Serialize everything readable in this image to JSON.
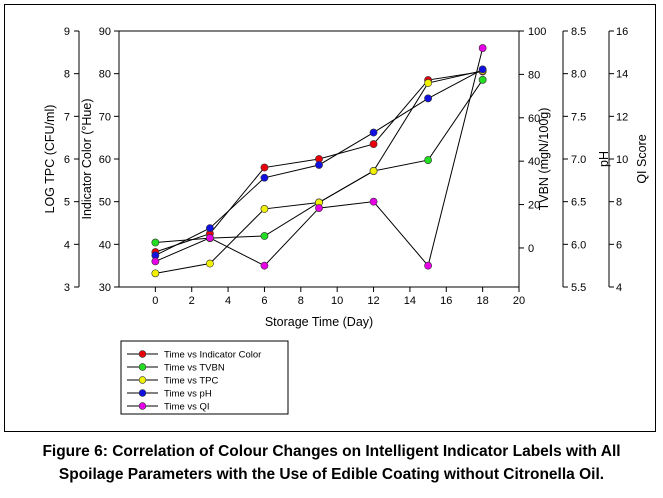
{
  "caption": {
    "line1": "Figure 6: Correlation of Colour Changes on Intelligent Indicator Labels with All",
    "line2": "Spoilage Parameters with the Use of Edible Coating without Citronella Oil."
  },
  "chart_data": {
    "type": "line",
    "title": "",
    "xlabel": "Storage Time (Day)",
    "x_ticks": [
      0,
      2,
      4,
      6,
      8,
      10,
      12,
      14,
      16,
      18,
      20
    ],
    "xlim": [
      -2,
      20
    ],
    "x": [
      0,
      3,
      6,
      9,
      12,
      15,
      18
    ],
    "axes": {
      "tpc": {
        "label": "LOG TPC (CFU/ml)",
        "ticks": [
          3,
          4,
          5,
          6,
          7,
          8,
          9
        ],
        "range": [
          3,
          9
        ]
      },
      "color": {
        "label": "Indicator Color (°Hue)",
        "ticks": [
          30,
          40,
          50,
          60,
          70,
          80,
          90
        ],
        "range": [
          30,
          90
        ]
      },
      "tvbn": {
        "label": "TVBN (mgN/100g)",
        "ticks": [
          0,
          20,
          40,
          60,
          80,
          100
        ],
        "range": [
          -18,
          100
        ]
      },
      "ph": {
        "label": "pH",
        "ticks": [
          5.5,
          6.0,
          6.5,
          7.0,
          7.5,
          8.0,
          8.5
        ],
        "tick_labels": [
          "5.5",
          "6.0",
          "6.5",
          "7.0",
          "7.5",
          "8.0",
          "8.5"
        ],
        "range": [
          5.5,
          8.5
        ]
      },
      "qi": {
        "label": "QI Score",
        "ticks": [
          4,
          6,
          8,
          10,
          12,
          14,
          16
        ],
        "range": [
          4,
          16
        ]
      }
    },
    "series": [
      {
        "name": "Time vs Indicator Color",
        "axis": "color",
        "color": "#e8000b",
        "values": [
          38.2,
          42.5,
          58,
          60,
          63.5,
          78.5,
          80.5
        ]
      },
      {
        "name": "Time vs TVBN",
        "axis": "tvbn",
        "color": "#22dd22",
        "values": [
          2.5,
          4.5,
          5.5,
          21,
          35.5,
          40.5,
          77.5
        ]
      },
      {
        "name": "Time vs TPC",
        "axis": "tpc",
        "color": "#f0f000",
        "values": [
          3.32,
          3.55,
          4.83,
          4.98,
          5.72,
          7.78,
          8.07
        ]
      },
      {
        "name": "Time vs pH",
        "axis": "ph",
        "color": "#1010e0",
        "values": [
          5.87,
          6.19,
          6.78,
          6.93,
          7.31,
          7.71,
          8.05
        ]
      },
      {
        "name": "Time vs QI",
        "axis": "qi",
        "color": "#e600e6",
        "values": [
          5.2,
          6.3,
          5.0,
          7.7,
          8.0,
          5.0,
          15.2
        ]
      }
    ]
  }
}
